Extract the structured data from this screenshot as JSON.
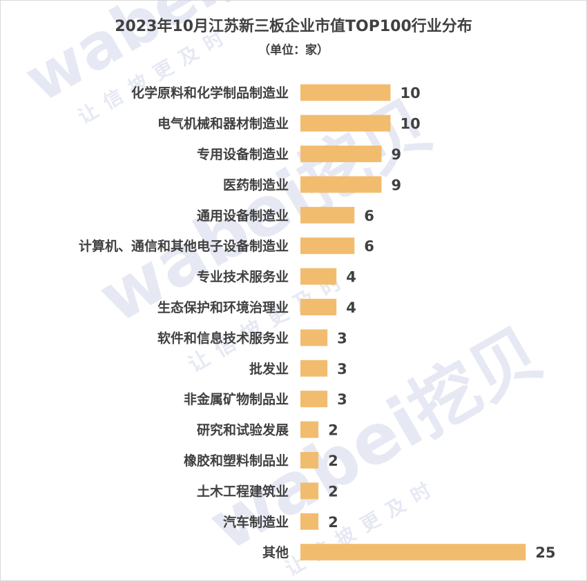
{
  "chart_data": {
    "type": "bar",
    "orientation": "horizontal",
    "title": "2023年10月江苏新三板企业市值TOP100行业分布",
    "subtitle": "（单位：家）",
    "categories": [
      "化学原料和化学制品制造业",
      "电气机械和器材制造业",
      "专用设备制造业",
      "医药制造业",
      "通用设备制造业",
      "计算机、通信和其他电子设备制造业",
      "专业技术服务业",
      "生态保护和环境治理业",
      "软件和信息技术服务业",
      "批发业",
      "非金属矿物制品业",
      "研究和试验发展",
      "橡胶和塑料制品业",
      "土木工程建筑业",
      "汽车制造业",
      "其他"
    ],
    "values": [
      10,
      10,
      9,
      9,
      6,
      6,
      4,
      4,
      3,
      3,
      3,
      2,
      2,
      2,
      2,
      25
    ],
    "bar_color": "#f2bc6f",
    "text_color": "#404040",
    "data_labels": true,
    "grid": false
  },
  "watermark": {
    "brand": "wabei挖贝",
    "slogan": "让信披更及时",
    "color": "#c9cfe6"
  }
}
